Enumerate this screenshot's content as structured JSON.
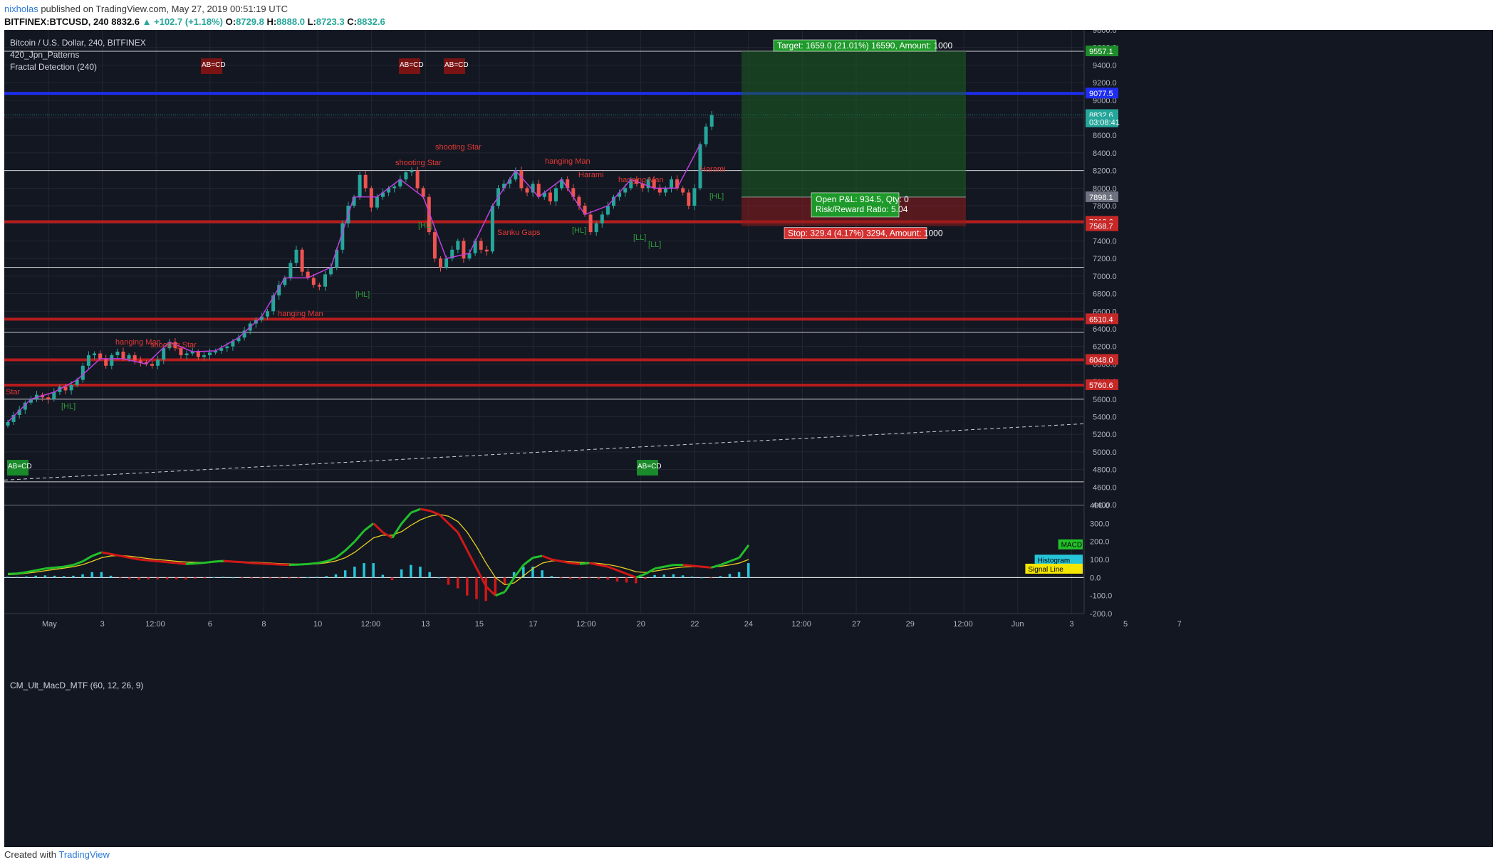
{
  "header": {
    "author": "nixholas",
    "published_text": " published on TradingView.com, May 27, 2019 00:51:19 UTC",
    "symbol": "BITFINEX:BTCUSD, 240",
    "last": "8832.6",
    "change": "▲ +102.7 (+1.18%)",
    "o_label": "O:",
    "o": "8729.8",
    "h_label": "H:",
    "h": "8888.0",
    "l_label": "L:",
    "l": "8723.3",
    "c_label": "C:",
    "c": "8832.6"
  },
  "legend": {
    "title": "Bitcoin / U.S. Dollar, 240, BITFINEX",
    "indicator1": "420_Jpn_Patterns",
    "indicator2": "Fractal Detection (240)"
  },
  "footer": {
    "created_with": "Created with",
    "brand": "TradingView"
  },
  "colors": {
    "bg": "#131722",
    "up": "#26a69a",
    "down": "#ef5350",
    "zigzag": "#c040e0",
    "red_line": "#b71c1c",
    "blue_line": "#1e2ef0",
    "macd": "#22c02a",
    "macd_down": "#d01818",
    "signal": "#e8d020"
  },
  "chart_data": [
    {
      "type": "candlestick",
      "title": "Bitcoin / U.S. Dollar, 240, BITFINEX",
      "ylim": [
        4400,
        9800
      ],
      "y_ticks": [
        9800,
        9600,
        9400,
        9200,
        9000,
        8800,
        8600,
        8400,
        8200,
        8000,
        7800,
        7600,
        7400,
        7200,
        7000,
        6800,
        6600,
        6400,
        6200,
        6000,
        5800,
        5600,
        5400,
        5200,
        5000,
        4800,
        4600,
        4400
      ],
      "x_ticks": [
        "May",
        "3",
        "12:00",
        "6",
        "8",
        "10",
        "12:00",
        "13",
        "15",
        "17",
        "12:00",
        "20",
        "22",
        "24",
        "12:00",
        "27",
        "29",
        "12:00",
        "Jun",
        "3",
        "5",
        "7"
      ],
      "close_series": [
        5340,
        5420,
        5480,
        5560,
        5600,
        5650,
        5620,
        5600,
        5680,
        5740,
        5700,
        5760,
        5820,
        5980,
        6100,
        6120,
        6060,
        5980,
        6100,
        6140,
        6060,
        6100,
        6040,
        6020,
        6000,
        5980,
        6050,
        6180,
        6250,
        6180,
        6100,
        6120,
        6140,
        6080,
        6100,
        6130,
        6150,
        6180,
        6200,
        6260,
        6300,
        6380,
        6460,
        6500,
        6540,
        6600,
        6780,
        6900,
        6980,
        7150,
        7300,
        7050,
        6980,
        6900,
        6880,
        7020,
        7100,
        7300,
        7600,
        7800,
        7900,
        8150,
        8000,
        7780,
        7900,
        7950,
        8000,
        8020,
        8100,
        8180,
        8200,
        8000,
        7900,
        7500,
        7200,
        7100,
        7200,
        7300,
        7400,
        7200,
        7260,
        7400,
        7300,
        7280,
        7800,
        8000,
        8050,
        8100,
        8200,
        8000,
        7950,
        8050,
        7900,
        7950,
        7850,
        8000,
        8100,
        8000,
        7900,
        7800,
        7700,
        7500,
        7600,
        7700,
        7800,
        7900,
        7950,
        8000,
        8100,
        8050,
        8000,
        8100,
        8000,
        7950,
        8000,
        8100,
        8000,
        7950,
        7800,
        8000,
        8500,
        8700,
        8832.6
      ],
      "horizontal_lines": [
        {
          "price": 9557.1,
          "label": "9557.1",
          "color": "#ffffff",
          "tag_color": "#1e8c2a"
        },
        {
          "price": 9077.5,
          "label": "9077.5",
          "color": "#1e2ef0",
          "tag_color": "#1e2ef0"
        },
        {
          "price": 8200,
          "color": "#ffffff"
        },
        {
          "price": 7618.6,
          "label": "7618.6",
          "color": "#b71c1c",
          "tag_color": "#c62828"
        },
        {
          "price": 7100,
          "color": "#ffffff"
        },
        {
          "price": 6510.4,
          "label": "6510.4",
          "color": "#b71c1c",
          "tag_color": "#c62828"
        },
        {
          "price": 6360,
          "color": "#ffffff"
        },
        {
          "price": 6048.0,
          "label": "6048.0",
          "color": "#b71c1c",
          "tag_color": "#c62828"
        },
        {
          "price": 5760.6,
          "label": "5760.6",
          "color": "#b71c1c",
          "tag_color": "#c62828"
        },
        {
          "price": 5600,
          "color": "#ffffff"
        },
        {
          "price": 4660,
          "color": "#ffffff"
        }
      ],
      "price_tags": [
        {
          "price": 8832.6,
          "label": "8832.6",
          "color": "#26a69a"
        },
        {
          "price": 8750,
          "label": "03:08:41",
          "color": "#26a69a"
        },
        {
          "price": 7898.1,
          "label": "7898.1",
          "color": "#6e7280"
        },
        {
          "price": 7568.7,
          "label": "7568.7",
          "color": "#c62828"
        }
      ],
      "position": {
        "entry": 7898.1,
        "target": 9557.1,
        "stop": 7568.7,
        "target_label": "Target: 1659.0 (21.01%) 16590, Amount: 1000",
        "stop_label": "Stop: 329.4 (4.17%) 3294, Amount: 1000",
        "pnl_label": "Open P&L: 934.5, Qty: 0",
        "rr_label": "Risk/Reward Ratio: 5.04"
      },
      "annotations": [
        {
          "text": "AB=CD",
          "color": "#7a1414"
        },
        {
          "text": "AB=CD",
          "color": "#7a1414"
        },
        {
          "text": "AB=CD",
          "color": "#7a1414"
        },
        {
          "text": "AB=CD",
          "color": "#1a8a2a"
        },
        {
          "text": "AB=CD",
          "color": "#1a8a2a"
        }
      ],
      "pattern_labels": [
        {
          "text": "Star",
          "color": "#e53935"
        },
        {
          "text": "hanging Man",
          "color": "#e53935"
        },
        {
          "text": "shooting Star",
          "color": "#e53935"
        },
        {
          "text": "hanging Man",
          "color": "#e53935"
        },
        {
          "text": "shooting Star",
          "color": "#e53935"
        },
        {
          "text": "shooting Star",
          "color": "#e53935"
        },
        {
          "text": "hanging Man",
          "color": "#e53935"
        },
        {
          "text": "Harami",
          "color": "#e53935"
        },
        {
          "text": "hanging Man",
          "color": "#e53935"
        },
        {
          "text": "Harami",
          "color": "#e53935"
        },
        {
          "text": "Sanku Gaps",
          "color": "#e53935"
        },
        {
          "text": "[HL]",
          "color": "#2e9a3a"
        },
        {
          "text": "[HL]",
          "color": "#2e9a3a"
        },
        {
          "text": "[HL]",
          "color": "#2e9a3a"
        },
        {
          "text": "[HL]",
          "color": "#2e9a3a"
        },
        {
          "text": "[LL]",
          "color": "#2e9a3a"
        },
        {
          "text": "[LL]",
          "color": "#2e9a3a"
        },
        {
          "text": "[HL]",
          "color": "#2e9a3a"
        }
      ]
    },
    {
      "type": "line",
      "title": "CM_Ult_MacD_MTF (60, 12, 26, 9)",
      "ylim": [
        -200,
        400
      ],
      "y_ticks": [
        400,
        300,
        200,
        100,
        0,
        -100,
        -200
      ],
      "y_tick_labels": [
        "400.0",
        "300.0",
        "200.0",
        "100.0",
        "0.0",
        "-100.0",
        "-200.0"
      ],
      "series": [
        {
          "name": "MACD",
          "color": "#22c02a",
          "values": [
            20,
            22,
            30,
            40,
            50,
            55,
            60,
            70,
            90,
            120,
            140,
            130,
            120,
            110,
            100,
            95,
            90,
            85,
            80,
            75,
            78,
            82,
            88,
            92,
            88,
            85,
            80,
            78,
            75,
            72,
            70,
            72,
            75,
            80,
            90,
            110,
            150,
            200,
            260,
            300,
            250,
            220,
            300,
            360,
            380,
            370,
            350,
            300,
            250,
            150,
            50,
            -50,
            -100,
            -80,
            0,
            70,
            110,
            120,
            100,
            90,
            80,
            75,
            80,
            70,
            60,
            40,
            20,
            0,
            20,
            50,
            60,
            70,
            70,
            65,
            60,
            55,
            70,
            90,
            110,
            180
          ]
        },
        {
          "name": "Signal Line",
          "color": "#e8d020",
          "values": [
            15,
            18,
            24,
            30,
            38,
            45,
            52,
            60,
            72,
            90,
            110,
            120,
            122,
            118,
            112,
            105,
            100,
            95,
            90,
            86,
            84,
            84,
            86,
            88,
            88,
            87,
            85,
            83,
            80,
            77,
            75,
            74,
            74,
            76,
            82,
            92,
            110,
            140,
            180,
            220,
            235,
            235,
            255,
            290,
            320,
            340,
            350,
            340,
            310,
            250,
            170,
            80,
            0,
            -40,
            -30,
            10,
            50,
            80,
            92,
            92,
            88,
            84,
            82,
            78,
            72,
            62,
            48,
            32,
            28,
            36,
            44,
            52,
            58,
            60,
            60,
            58,
            62,
            70,
            80,
            100
          ]
        },
        {
          "name": "Histogram",
          "color": "#26c6da",
          "values": [
            5,
            4,
            6,
            10,
            12,
            10,
            8,
            10,
            18,
            30,
            30,
            10,
            -2,
            -8,
            -12,
            -10,
            -10,
            -10,
            -10,
            -11,
            -6,
            -2,
            2,
            4,
            0,
            -2,
            -5,
            -5,
            -5,
            -5,
            -5,
            -2,
            1,
            4,
            8,
            18,
            40,
            60,
            80,
            80,
            15,
            -15,
            45,
            70,
            60,
            30,
            0,
            -40,
            -60,
            -100,
            -120,
            -130,
            -100,
            -40,
            30,
            60,
            60,
            40,
            8,
            -2,
            -8,
            -9,
            -2,
            -8,
            -12,
            -22,
            -28,
            -32,
            -8,
            14,
            16,
            18,
            12,
            5,
            0,
            -3,
            8,
            20,
            30,
            80
          ]
        }
      ],
      "legend_tags": [
        {
          "text": "MACD",
          "color": "#22c02a",
          "text_color": "#000000"
        },
        {
          "text": "Histogram",
          "color": "#26c6da",
          "text_color": "#000000"
        },
        {
          "text": "Signal Line",
          "color": "#f5e600",
          "text_color": "#000000"
        }
      ]
    }
  ]
}
